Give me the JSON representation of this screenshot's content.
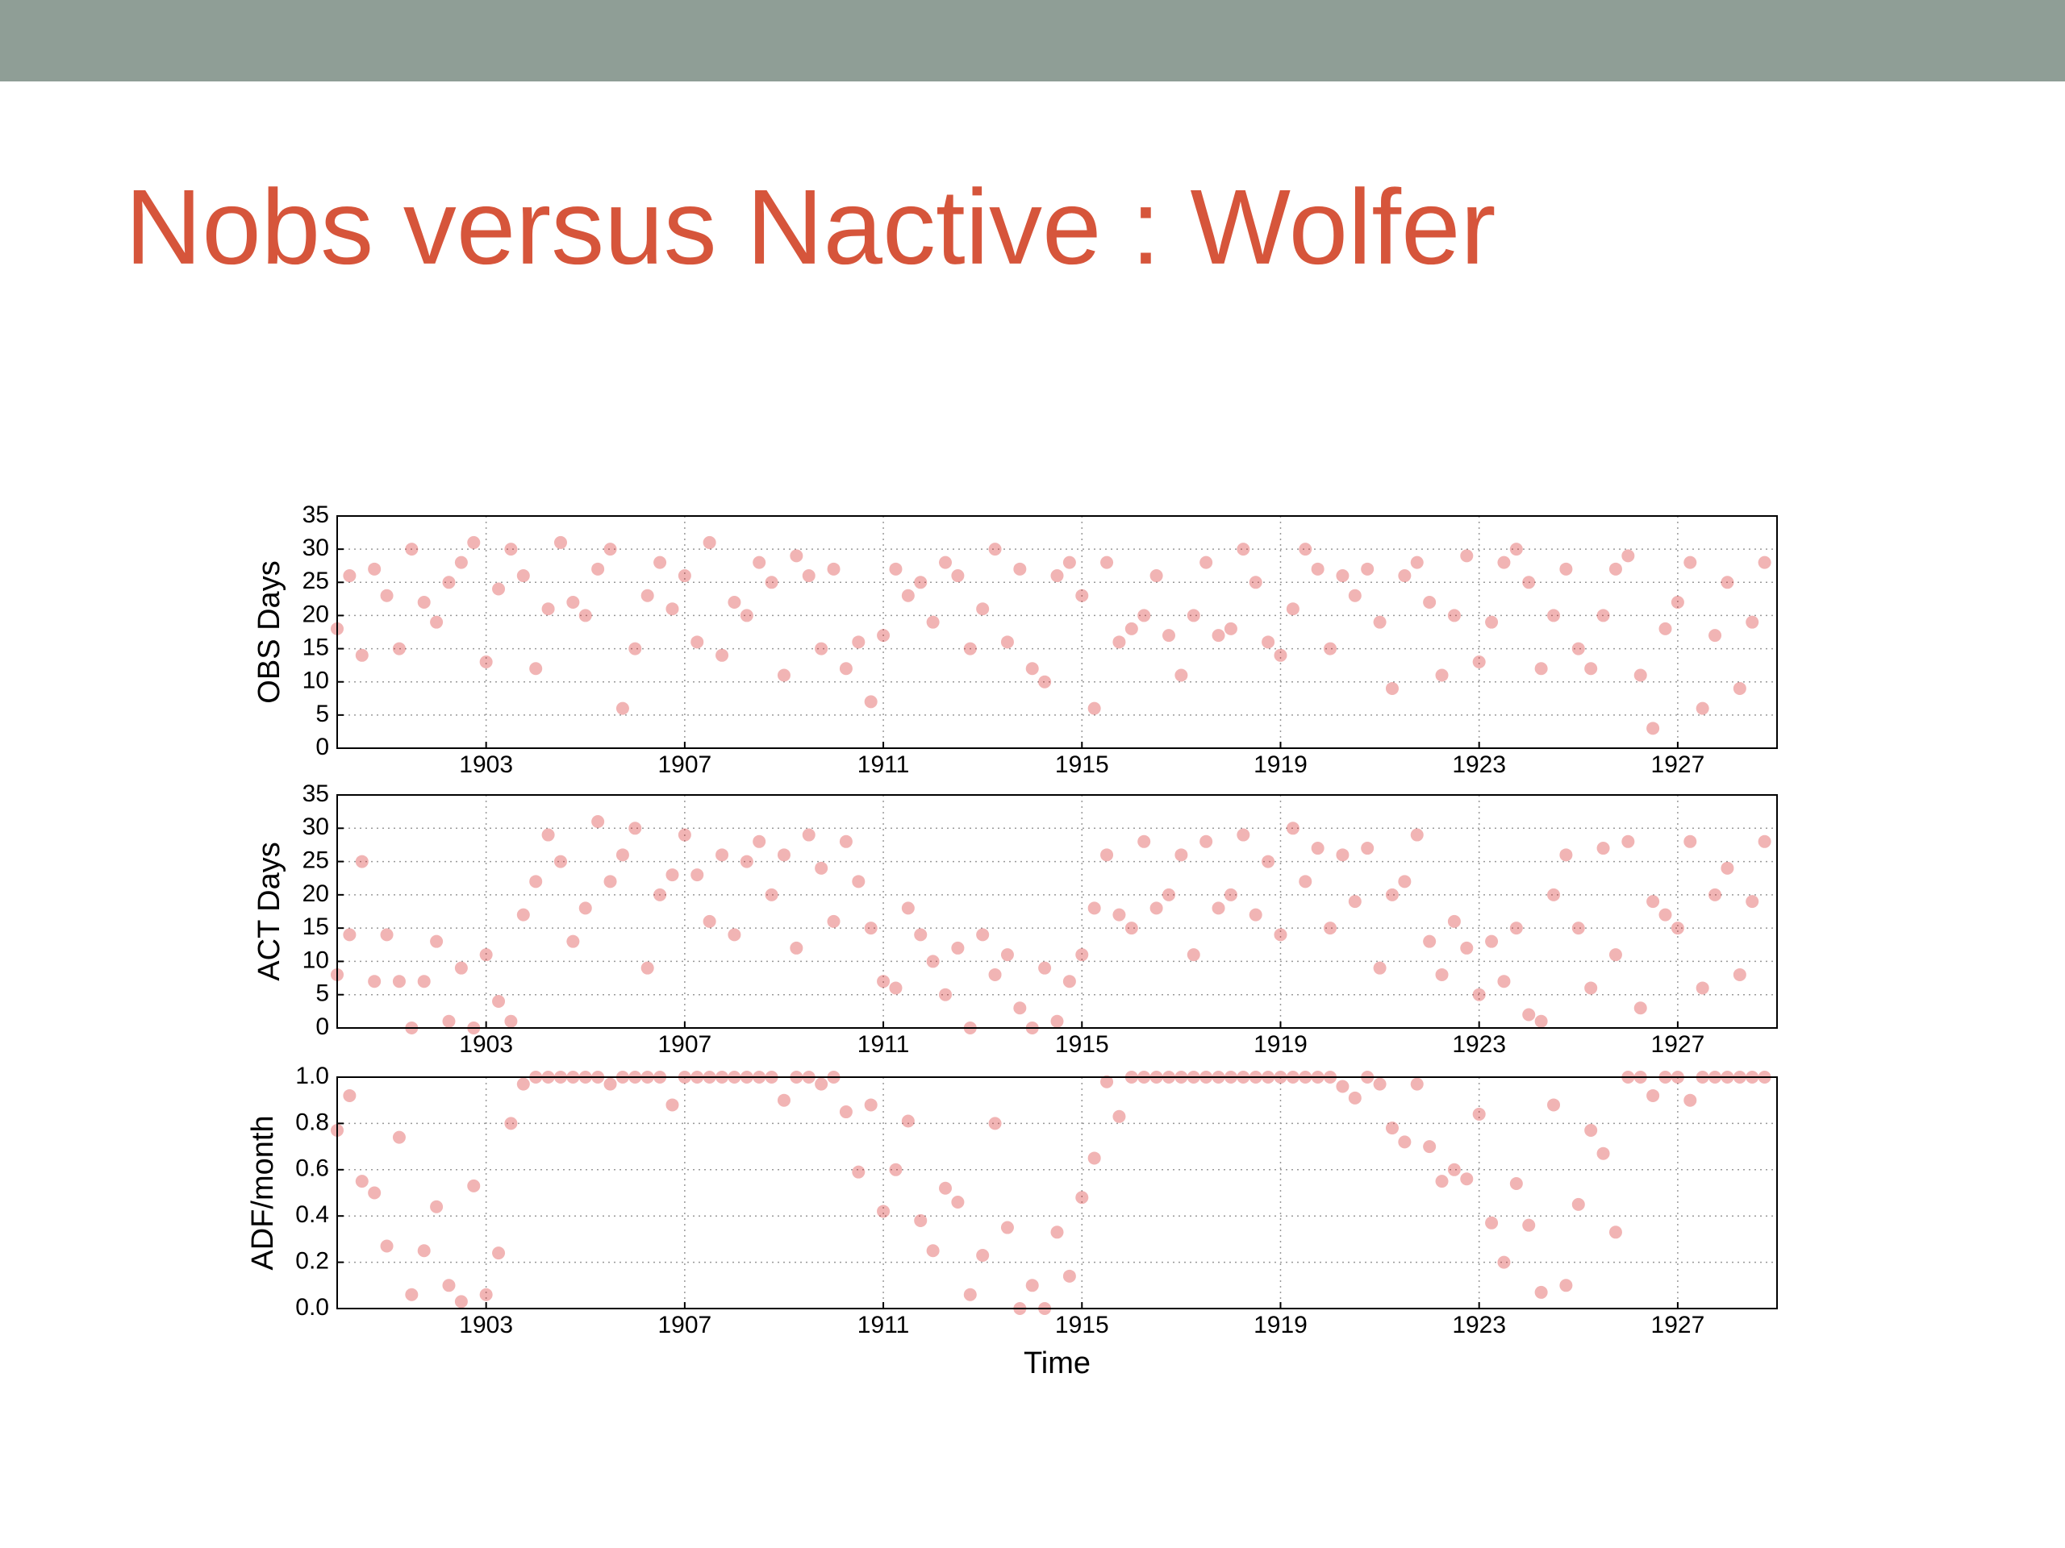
{
  "title": "Nobs versus Nactive : Wolfer",
  "chart_data": [
    {
      "type": "scatter",
      "ylabel": "OBS Days",
      "color": "#d62728",
      "grid": true,
      "xlim": [
        1900,
        1929
      ],
      "xticks": [
        1903,
        1907,
        1911,
        1915,
        1919,
        1923,
        1927
      ],
      "ylim": [
        0,
        35
      ],
      "yticks": [
        0,
        5,
        10,
        15,
        20,
        25,
        30,
        35
      ],
      "x": [
        1900,
        1900.25,
        1900.5,
        1900.75,
        1901,
        1901.25,
        1901.5,
        1901.75,
        1902,
        1902.25,
        1902.5,
        1902.75,
        1903,
        1903.25,
        1903.5,
        1903.75,
        1904,
        1904.25,
        1904.5,
        1904.75,
        1905,
        1905.25,
        1905.5,
        1905.75,
        1906,
        1906.25,
        1906.5,
        1906.75,
        1907,
        1907.25,
        1907.5,
        1907.75,
        1908,
        1908.25,
        1908.5,
        1908.75,
        1909,
        1909.25,
        1909.5,
        1909.75,
        1910,
        1910.25,
        1910.5,
        1910.75,
        1911,
        1911.25,
        1911.5,
        1911.75,
        1912,
        1912.25,
        1912.5,
        1912.75,
        1913,
        1913.25,
        1913.5,
        1913.75,
        1914,
        1914.25,
        1914.5,
        1914.75,
        1915,
        1915.25,
        1915.5,
        1915.75,
        1916,
        1916.25,
        1916.5,
        1916.75,
        1917,
        1917.25,
        1917.5,
        1917.75,
        1918,
        1918.25,
        1918.5,
        1918.75,
        1919,
        1919.25,
        1919.5,
        1919.75,
        1920,
        1920.25,
        1920.5,
        1920.75,
        1921,
        1921.25,
        1921.5,
        1921.75,
        1922,
        1922.25,
        1922.5,
        1922.75,
        1923,
        1923.25,
        1923.5,
        1923.75,
        1924,
        1924.25,
        1924.5,
        1924.75,
        1925,
        1925.25,
        1925.5,
        1925.75,
        1926,
        1926.25,
        1926.5,
        1926.75,
        1927,
        1927.25,
        1927.5,
        1927.75,
        1928,
        1928.25,
        1928.5,
        1928.75
      ],
      "values": [
        18,
        26,
        14,
        27,
        23,
        15,
        30,
        22,
        19,
        25,
        28,
        31,
        13,
        24,
        30,
        26,
        12,
        21,
        31,
        22,
        20,
        27,
        30,
        6,
        15,
        23,
        28,
        21,
        26,
        16,
        31,
        14,
        22,
        20,
        28,
        25,
        11,
        29,
        26,
        15,
        27,
        12,
        16,
        7,
        17,
        27,
        23,
        25,
        19,
        28,
        26,
        15,
        21,
        30,
        16,
        27,
        12,
        10,
        26,
        28,
        23,
        6,
        28,
        16,
        18,
        20,
        26,
        17,
        11,
        20,
        28,
        17,
        18,
        30,
        25,
        16,
        14,
        21,
        30,
        27,
        15,
        26,
        23,
        27,
        19,
        9,
        26,
        28,
        22,
        11,
        20,
        29,
        13,
        19,
        28,
        30,
        25,
        12,
        20,
        27,
        15,
        12,
        20,
        27,
        29,
        11,
        3,
        18,
        22,
        28,
        6,
        17,
        25,
        9,
        19,
        28
      ]
    },
    {
      "type": "scatter",
      "ylabel": "ACT Days",
      "color": "#d62728",
      "grid": true,
      "xlim": [
        1900,
        1929
      ],
      "xticks": [
        1903,
        1907,
        1911,
        1915,
        1919,
        1923,
        1927
      ],
      "ylim": [
        0,
        35
      ],
      "yticks": [
        0,
        5,
        10,
        15,
        20,
        25,
        30,
        35
      ],
      "x": [
        1900,
        1900.25,
        1900.5,
        1900.75,
        1901,
        1901.25,
        1901.5,
        1901.75,
        1902,
        1902.25,
        1902.5,
        1902.75,
        1903,
        1903.25,
        1903.5,
        1903.75,
        1904,
        1904.25,
        1904.5,
        1904.75,
        1905,
        1905.25,
        1905.5,
        1905.75,
        1906,
        1906.25,
        1906.5,
        1906.75,
        1907,
        1907.25,
        1907.5,
        1907.75,
        1908,
        1908.25,
        1908.5,
        1908.75,
        1909,
        1909.25,
        1909.5,
        1909.75,
        1910,
        1910.25,
        1910.5,
        1910.75,
        1911,
        1911.25,
        1911.5,
        1911.75,
        1912,
        1912.25,
        1912.5,
        1912.75,
        1913,
        1913.25,
        1913.5,
        1913.75,
        1914,
        1914.25,
        1914.5,
        1914.75,
        1915,
        1915.25,
        1915.5,
        1915.75,
        1916,
        1916.25,
        1916.5,
        1916.75,
        1917,
        1917.25,
        1917.5,
        1917.75,
        1918,
        1918.25,
        1918.5,
        1918.75,
        1919,
        1919.25,
        1919.5,
        1919.75,
        1920,
        1920.25,
        1920.5,
        1920.75,
        1921,
        1921.25,
        1921.5,
        1921.75,
        1922,
        1922.25,
        1922.5,
        1922.75,
        1923,
        1923.25,
        1923.5,
        1923.75,
        1924,
        1924.25,
        1924.5,
        1924.75,
        1925,
        1925.25,
        1925.5,
        1925.75,
        1926,
        1926.25,
        1926.5,
        1926.75,
        1927,
        1927.25,
        1927.5,
        1927.75,
        1928,
        1928.25,
        1928.5,
        1928.75
      ],
      "values": [
        8,
        14,
        25,
        7,
        14,
        7,
        0,
        7,
        13,
        1,
        9,
        0,
        11,
        4,
        1,
        17,
        22,
        29,
        25,
        13,
        18,
        31,
        22,
        26,
        30,
        9,
        20,
        23,
        29,
        23,
        16,
        26,
        14,
        25,
        28,
        20,
        26,
        12,
        29,
        24,
        16,
        28,
        22,
        15,
        7,
        6,
        18,
        14,
        10,
        5,
        12,
        0,
        14,
        8,
        11,
        3,
        0,
        9,
        1,
        7,
        11,
        18,
        26,
        17,
        15,
        28,
        18,
        20,
        26,
        11,
        28,
        18,
        20,
        29,
        17,
        25,
        14,
        30,
        22,
        27,
        15,
        26,
        19,
        27,
        9,
        20,
        22,
        29,
        13,
        8,
        16,
        12,
        5,
        13,
        7,
        15,
        2,
        1,
        20,
        26,
        15,
        6,
        27,
        11,
        28,
        3,
        19,
        17,
        15,
        28,
        6,
        20,
        24,
        8,
        19,
        28
      ]
    },
    {
      "type": "scatter",
      "ylabel": "ADF/month",
      "xlabel": "Time",
      "color": "#d62728",
      "grid": true,
      "xlim": [
        1900,
        1929
      ],
      "xticks": [
        1903,
        1907,
        1911,
        1915,
        1919,
        1923,
        1927
      ],
      "ylim": [
        0,
        1
      ],
      "yticks": [
        {
          "value": 0,
          "label": "0.0"
        },
        0.2,
        0.4,
        0.6,
        0.8,
        {
          "value": 1,
          "label": "1.0"
        }
      ],
      "x": [
        1900,
        1900.25,
        1900.5,
        1900.75,
        1901,
        1901.25,
        1901.5,
        1901.75,
        1902,
        1902.25,
        1902.5,
        1902.75,
        1903,
        1903.25,
        1903.5,
        1903.75,
        1904,
        1904.25,
        1904.5,
        1904.75,
        1905,
        1905.25,
        1905.5,
        1905.75,
        1906,
        1906.25,
        1906.5,
        1906.75,
        1907,
        1907.25,
        1907.5,
        1907.75,
        1908,
        1908.25,
        1908.5,
        1908.75,
        1909,
        1909.25,
        1909.5,
        1909.75,
        1910,
        1910.25,
        1910.5,
        1910.75,
        1911,
        1911.25,
        1911.5,
        1911.75,
        1912,
        1912.25,
        1912.5,
        1912.75,
        1913,
        1913.25,
        1913.5,
        1913.75,
        1914,
        1914.25,
        1914.5,
        1914.75,
        1915,
        1915.25,
        1915.5,
        1915.75,
        1916,
        1916.25,
        1916.5,
        1916.75,
        1917,
        1917.25,
        1917.5,
        1917.75,
        1918,
        1918.25,
        1918.5,
        1918.75,
        1919,
        1919.25,
        1919.5,
        1919.75,
        1920,
        1920.25,
        1920.5,
        1920.75,
        1921,
        1921.25,
        1921.5,
        1921.75,
        1922,
        1922.25,
        1922.5,
        1922.75,
        1923,
        1923.25,
        1923.5,
        1923.75,
        1924,
        1924.25,
        1924.5,
        1924.75,
        1925,
        1925.25,
        1925.5,
        1925.75,
        1926,
        1926.25,
        1926.5,
        1926.75,
        1927,
        1927.25,
        1927.5,
        1927.75,
        1928,
        1928.25,
        1928.5,
        1928.75
      ],
      "values": [
        0.77,
        0.92,
        0.55,
        0.5,
        0.27,
        0.74,
        0.06,
        0.25,
        0.44,
        0.1,
        0.03,
        0.53,
        0.06,
        0.24,
        0.8,
        0.97,
        1,
        1,
        1,
        1,
        1,
        1,
        0.97,
        1,
        1,
        1,
        1,
        0.88,
        1,
        1,
        1,
        1,
        1,
        1,
        1,
        1,
        0.9,
        1,
        1,
        0.97,
        1,
        0.85,
        0.59,
        0.88,
        0.42,
        0.6,
        0.81,
        0.38,
        0.25,
        0.52,
        0.46,
        0.06,
        0.23,
        0.8,
        0.35,
        0,
        0.1,
        0,
        0.33,
        0.14,
        0.48,
        0.65,
        0.98,
        0.83,
        1,
        1,
        1,
        1,
        1,
        1,
        1,
        1,
        1,
        1,
        1,
        1,
        1,
        1,
        1,
        1,
        1,
        0.96,
        0.91,
        1,
        0.97,
        0.78,
        0.72,
        0.97,
        0.7,
        0.55,
        0.6,
        0.56,
        0.84,
        0.37,
        0.2,
        0.54,
        0.36,
        0.07,
        0.88,
        0.1,
        0.45,
        0.77,
        0.67,
        0.33,
        1,
        1,
        0.92,
        1,
        1,
        0.9,
        1,
        1,
        1,
        1,
        1,
        1
      ]
    }
  ]
}
